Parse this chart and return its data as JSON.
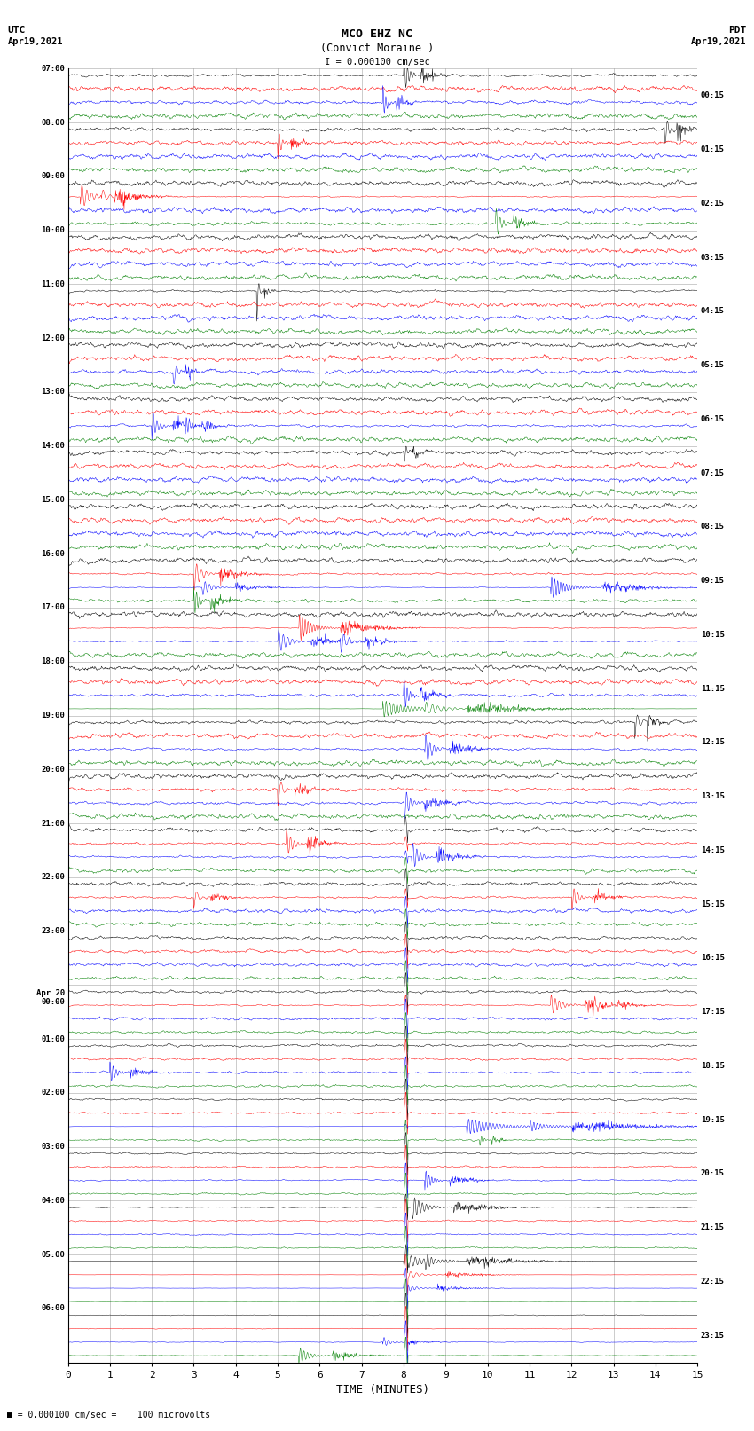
{
  "title_line1": "MCO EHZ NC",
  "title_line2": "(Convict Moraine )",
  "scale_text": "I = 0.000100 cm/sec",
  "footer_text": "= 0.000100 cm/sec =    100 microvolts",
  "utc_label": "UTC",
  "utc_date": "Apr19,2021",
  "pdt_label": "PDT",
  "pdt_date": "Apr19,2021",
  "xlabel": "TIME (MINUTES)",
  "left_times": [
    "07:00",
    "08:00",
    "09:00",
    "10:00",
    "11:00",
    "12:00",
    "13:00",
    "14:00",
    "15:00",
    "16:00",
    "17:00",
    "18:00",
    "19:00",
    "20:00",
    "21:00",
    "22:00",
    "23:00",
    "Apr 20\n00:00",
    "01:00",
    "02:00",
    "03:00",
    "04:00",
    "05:00",
    "06:00"
  ],
  "right_times": [
    "00:15",
    "01:15",
    "02:15",
    "03:15",
    "04:15",
    "05:15",
    "06:15",
    "07:15",
    "08:15",
    "09:15",
    "10:15",
    "11:15",
    "12:15",
    "13:15",
    "14:15",
    "15:15",
    "16:15",
    "17:15",
    "18:15",
    "19:15",
    "20:15",
    "21:15",
    "22:15",
    "23:15"
  ],
  "num_rows": 24,
  "traces_per_row": 4,
  "colors": [
    "black",
    "red",
    "blue",
    "green"
  ],
  "bg_color": "#ffffff",
  "grid_color": "#999999",
  "xmin": 0,
  "xmax": 15,
  "xticks": [
    0,
    1,
    2,
    3,
    4,
    5,
    6,
    7,
    8,
    9,
    10,
    11,
    12,
    13,
    14,
    15
  ],
  "seed": 12345
}
